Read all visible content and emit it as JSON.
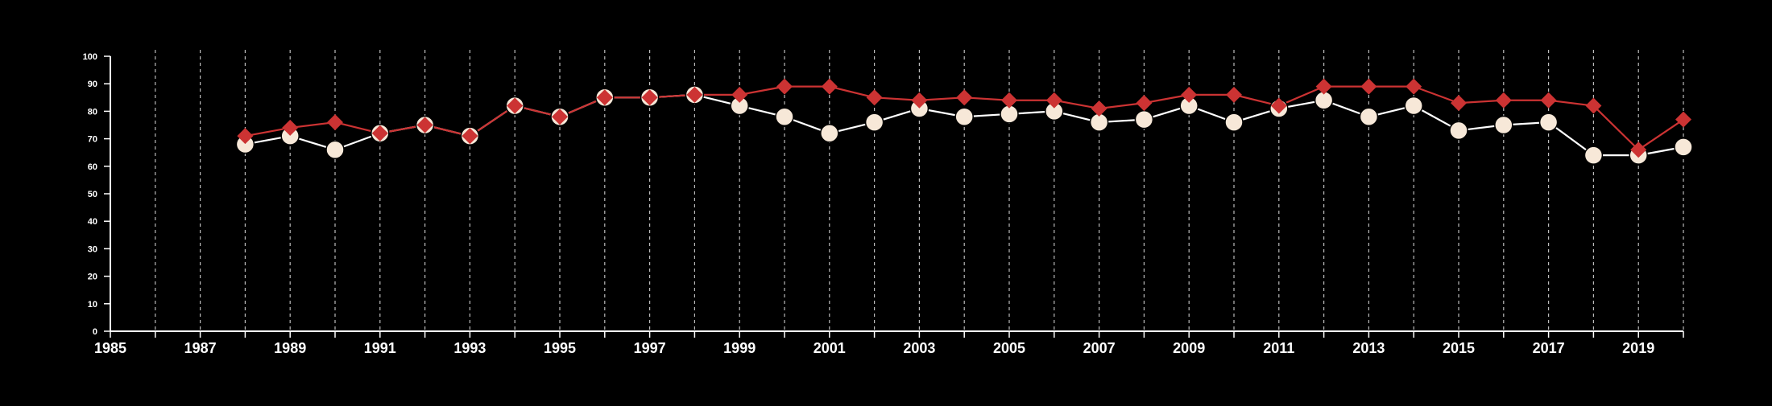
{
  "colors": {
    "background": "#000000",
    "axis": "#ffffff",
    "grid": "#bbbbbb",
    "series_a_line": "#ffffff",
    "series_a_marker": "#f7e8d8",
    "series_b": "#cc3333"
  },
  "chart_data": {
    "type": "line",
    "title": "",
    "xlabel": "",
    "ylabel": "",
    "xlim": [
      1985,
      2020
    ],
    "ylim": [
      0,
      100
    ],
    "grid": {
      "vertical": true,
      "horizontal": false,
      "style": "dashed"
    },
    "legend": "none",
    "xticks": [
      1985,
      1987,
      1989,
      1991,
      1993,
      1995,
      1997,
      1999,
      2001,
      2003,
      2005,
      2007,
      2009,
      2011,
      2013,
      2015,
      2017,
      2019
    ],
    "xtick_labels": [
      "1985",
      "1987",
      "1989",
      "1991",
      "1993",
      "1995",
      "1997",
      "1999",
      "2001",
      "2003",
      "2005",
      "2007",
      "2009",
      "2011",
      "2013",
      "2015",
      "2017",
      "2019"
    ],
    "yticks": [
      0,
      10,
      20,
      30,
      40,
      50,
      60,
      70,
      80,
      90,
      100
    ],
    "ytick_labels": [
      "0",
      "10",
      "20",
      "30",
      "40",
      "50",
      "60",
      "70",
      "80",
      "90",
      "100"
    ],
    "x": [
      1988,
      1989,
      1990,
      1991,
      1992,
      1993,
      1994,
      1995,
      1996,
      1997,
      1998,
      1999,
      2000,
      2001,
      2002,
      2003,
      2004,
      2005,
      2006,
      2007,
      2008,
      2009,
      2010,
      2011,
      2012,
      2013,
      2014,
      2015,
      2016,
      2017,
      2018,
      2019,
      2020
    ],
    "series": [
      {
        "marker": "circle",
        "values": [
          68,
          71,
          66,
          72,
          75,
          71,
          82,
          78,
          85,
          85,
          86,
          82,
          78,
          72,
          76,
          81,
          78,
          79,
          80,
          76,
          77,
          82,
          76,
          81,
          84,
          78,
          82,
          73,
          75,
          76,
          64,
          64,
          67
        ]
      },
      {
        "marker": "diamond",
        "values": [
          71,
          74,
          76,
          72,
          75,
          71,
          82,
          78,
          85,
          85,
          86,
          86,
          89,
          89,
          85,
          84,
          85,
          84,
          84,
          81,
          83,
          86,
          86,
          82,
          89,
          89,
          89,
          83,
          84,
          84,
          82,
          66,
          77
        ]
      }
    ]
  }
}
